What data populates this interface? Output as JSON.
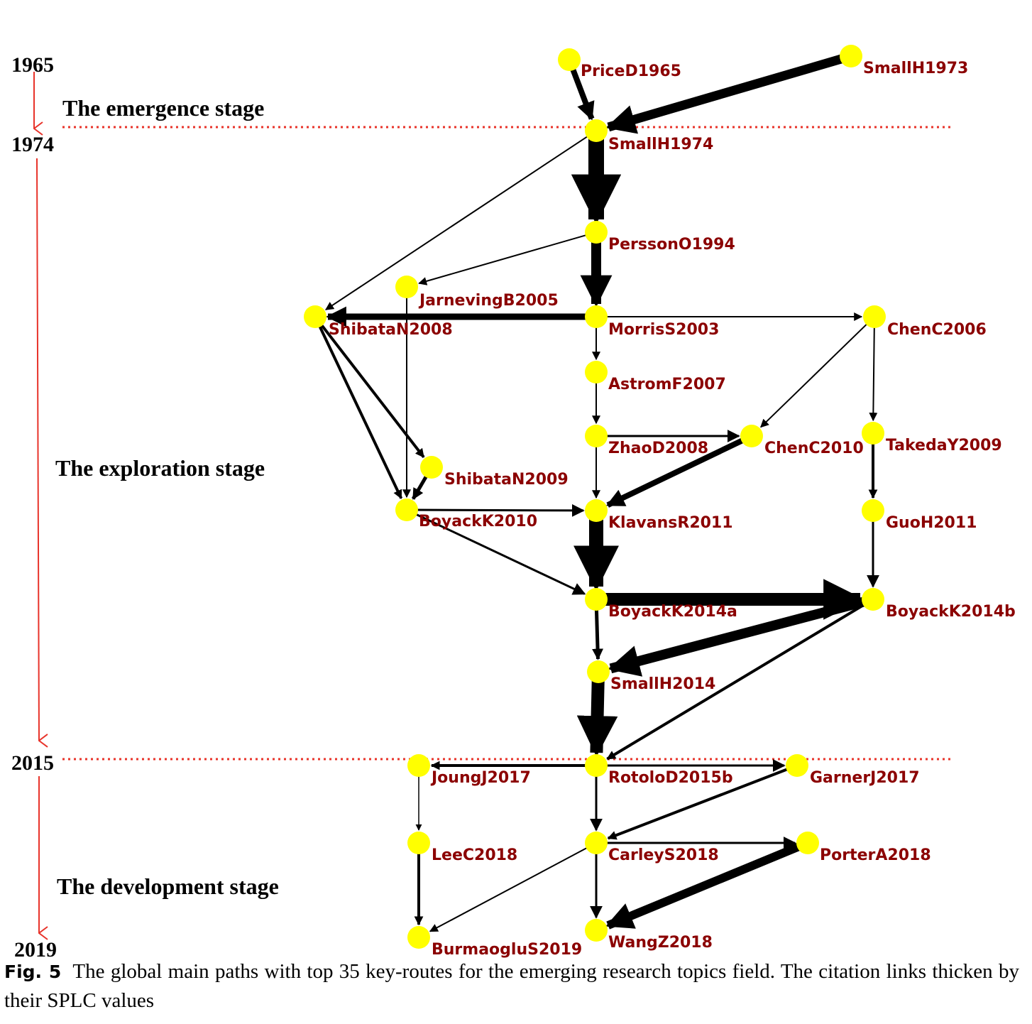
{
  "years": [
    "1965",
    "1974",
    "2015",
    "2019"
  ],
  "stages": [
    "The emergence stage",
    "The exploration stage",
    "The development stage"
  ],
  "nodes": {
    "price1965": "PriceD1965",
    "small1973": "SmallH1973",
    "small1974": "SmallH1974",
    "persson1994": "PerssonO1994",
    "jarneving2005": "JarnevingB2005",
    "shibata2008": "ShibataN2008",
    "morris2003": "MorrisS2003",
    "chen2006": "ChenC2006",
    "astrom2007": "AstromF2007",
    "zhao2008": "ZhaoD2008",
    "chen2010": "ChenC2010",
    "takeda2009": "TakedaY2009",
    "shibata2009": "ShibataN2009",
    "boyack2010": "BoyackK2010",
    "klavans2011": "KlavansR2011",
    "guo2011": "GuoH2011",
    "boyack2014a": "BoyackK2014a",
    "boyack2014b": "BoyackK2014b",
    "small2014": "SmallH2014",
    "joung2017": "JoungJ2017",
    "rotolo2015b": "RotoloD2015b",
    "garner2017": "GarnerJ2017",
    "lee2018": "LeeC2018",
    "carley2018": "CarleyS2018",
    "porter2018": "PorterA2018",
    "burmaoglu2019": "BurmaogluS2019",
    "wang2018": "WangZ2018"
  },
  "caption": {
    "label": "Fig. 5",
    "text": "The global main paths with top 35 key-routes for the emerging research topics field. The citation links thicken by their SPLC values"
  },
  "colors": {
    "node": "#ffff00",
    "edge": "#000000",
    "label": "#8b0000",
    "timeline": "#e8332a"
  }
}
